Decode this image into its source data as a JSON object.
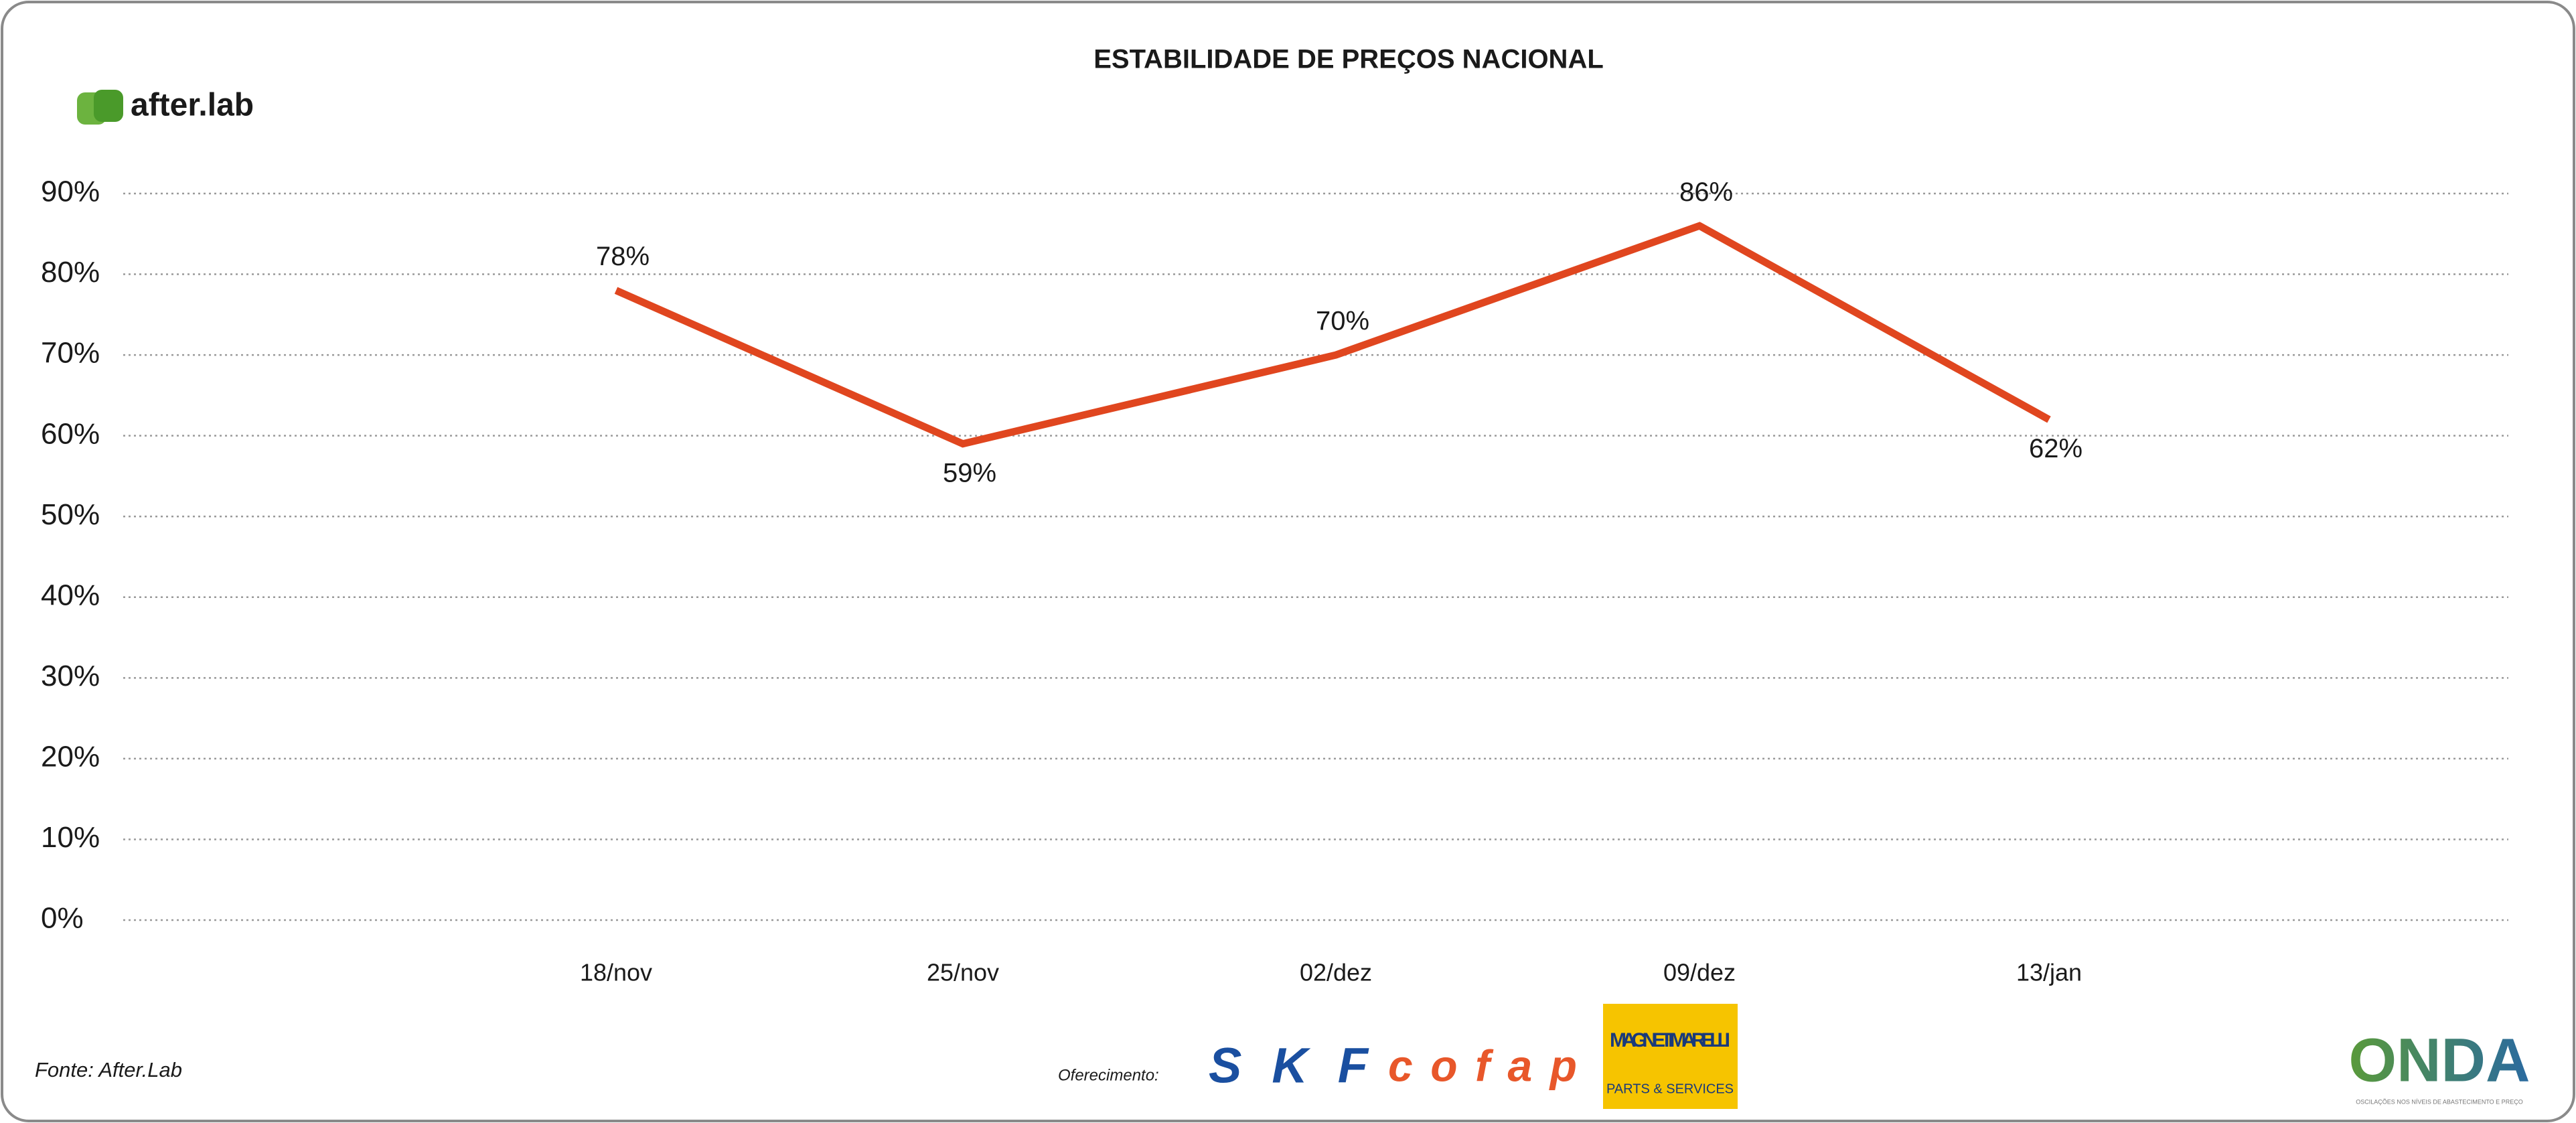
{
  "chart_data": {
    "type": "line",
    "title": "ESTABILIDADE DE PREÇOS NACIONAL",
    "categories": [
      "18/nov",
      "25/nov",
      "02/dez",
      "09/dez",
      "13/jan"
    ],
    "series": [
      {
        "name": "Estabilidade",
        "color": "#e0461f",
        "values": [
          78,
          59,
          70,
          86,
          62
        ],
        "value_labels": [
          "78%",
          "59%",
          "70%",
          "86%",
          "62%"
        ]
      }
    ],
    "ylim": [
      0,
      90
    ],
    "yticks": [
      {
        "value": 0,
        "label": "0%"
      },
      {
        "value": 10,
        "label": "10%"
      },
      {
        "value": 20,
        "label": "20%"
      },
      {
        "value": 30,
        "label": "30%"
      },
      {
        "value": 40,
        "label": "40%"
      },
      {
        "value": 50,
        "label": "50%"
      },
      {
        "value": 60,
        "label": "60%"
      },
      {
        "value": 70,
        "label": "70%"
      },
      {
        "value": 80,
        "label": "80%"
      },
      {
        "value": 90,
        "label": "90%"
      }
    ],
    "grid": true
  },
  "branding": {
    "logo": "after.lab",
    "source": "Fonte: After.Lab",
    "sponsor_label": "Oferecimento:",
    "sponsors": [
      "SKF",
      "cofap",
      "MAGNETI MARELLI",
      "PARTS & SERVICES"
    ],
    "brand": "ONDA",
    "brand_tagline": "OSCILAÇÕES NOS NÍVEIS DE ABASTECIMENTO E PREÇO"
  }
}
